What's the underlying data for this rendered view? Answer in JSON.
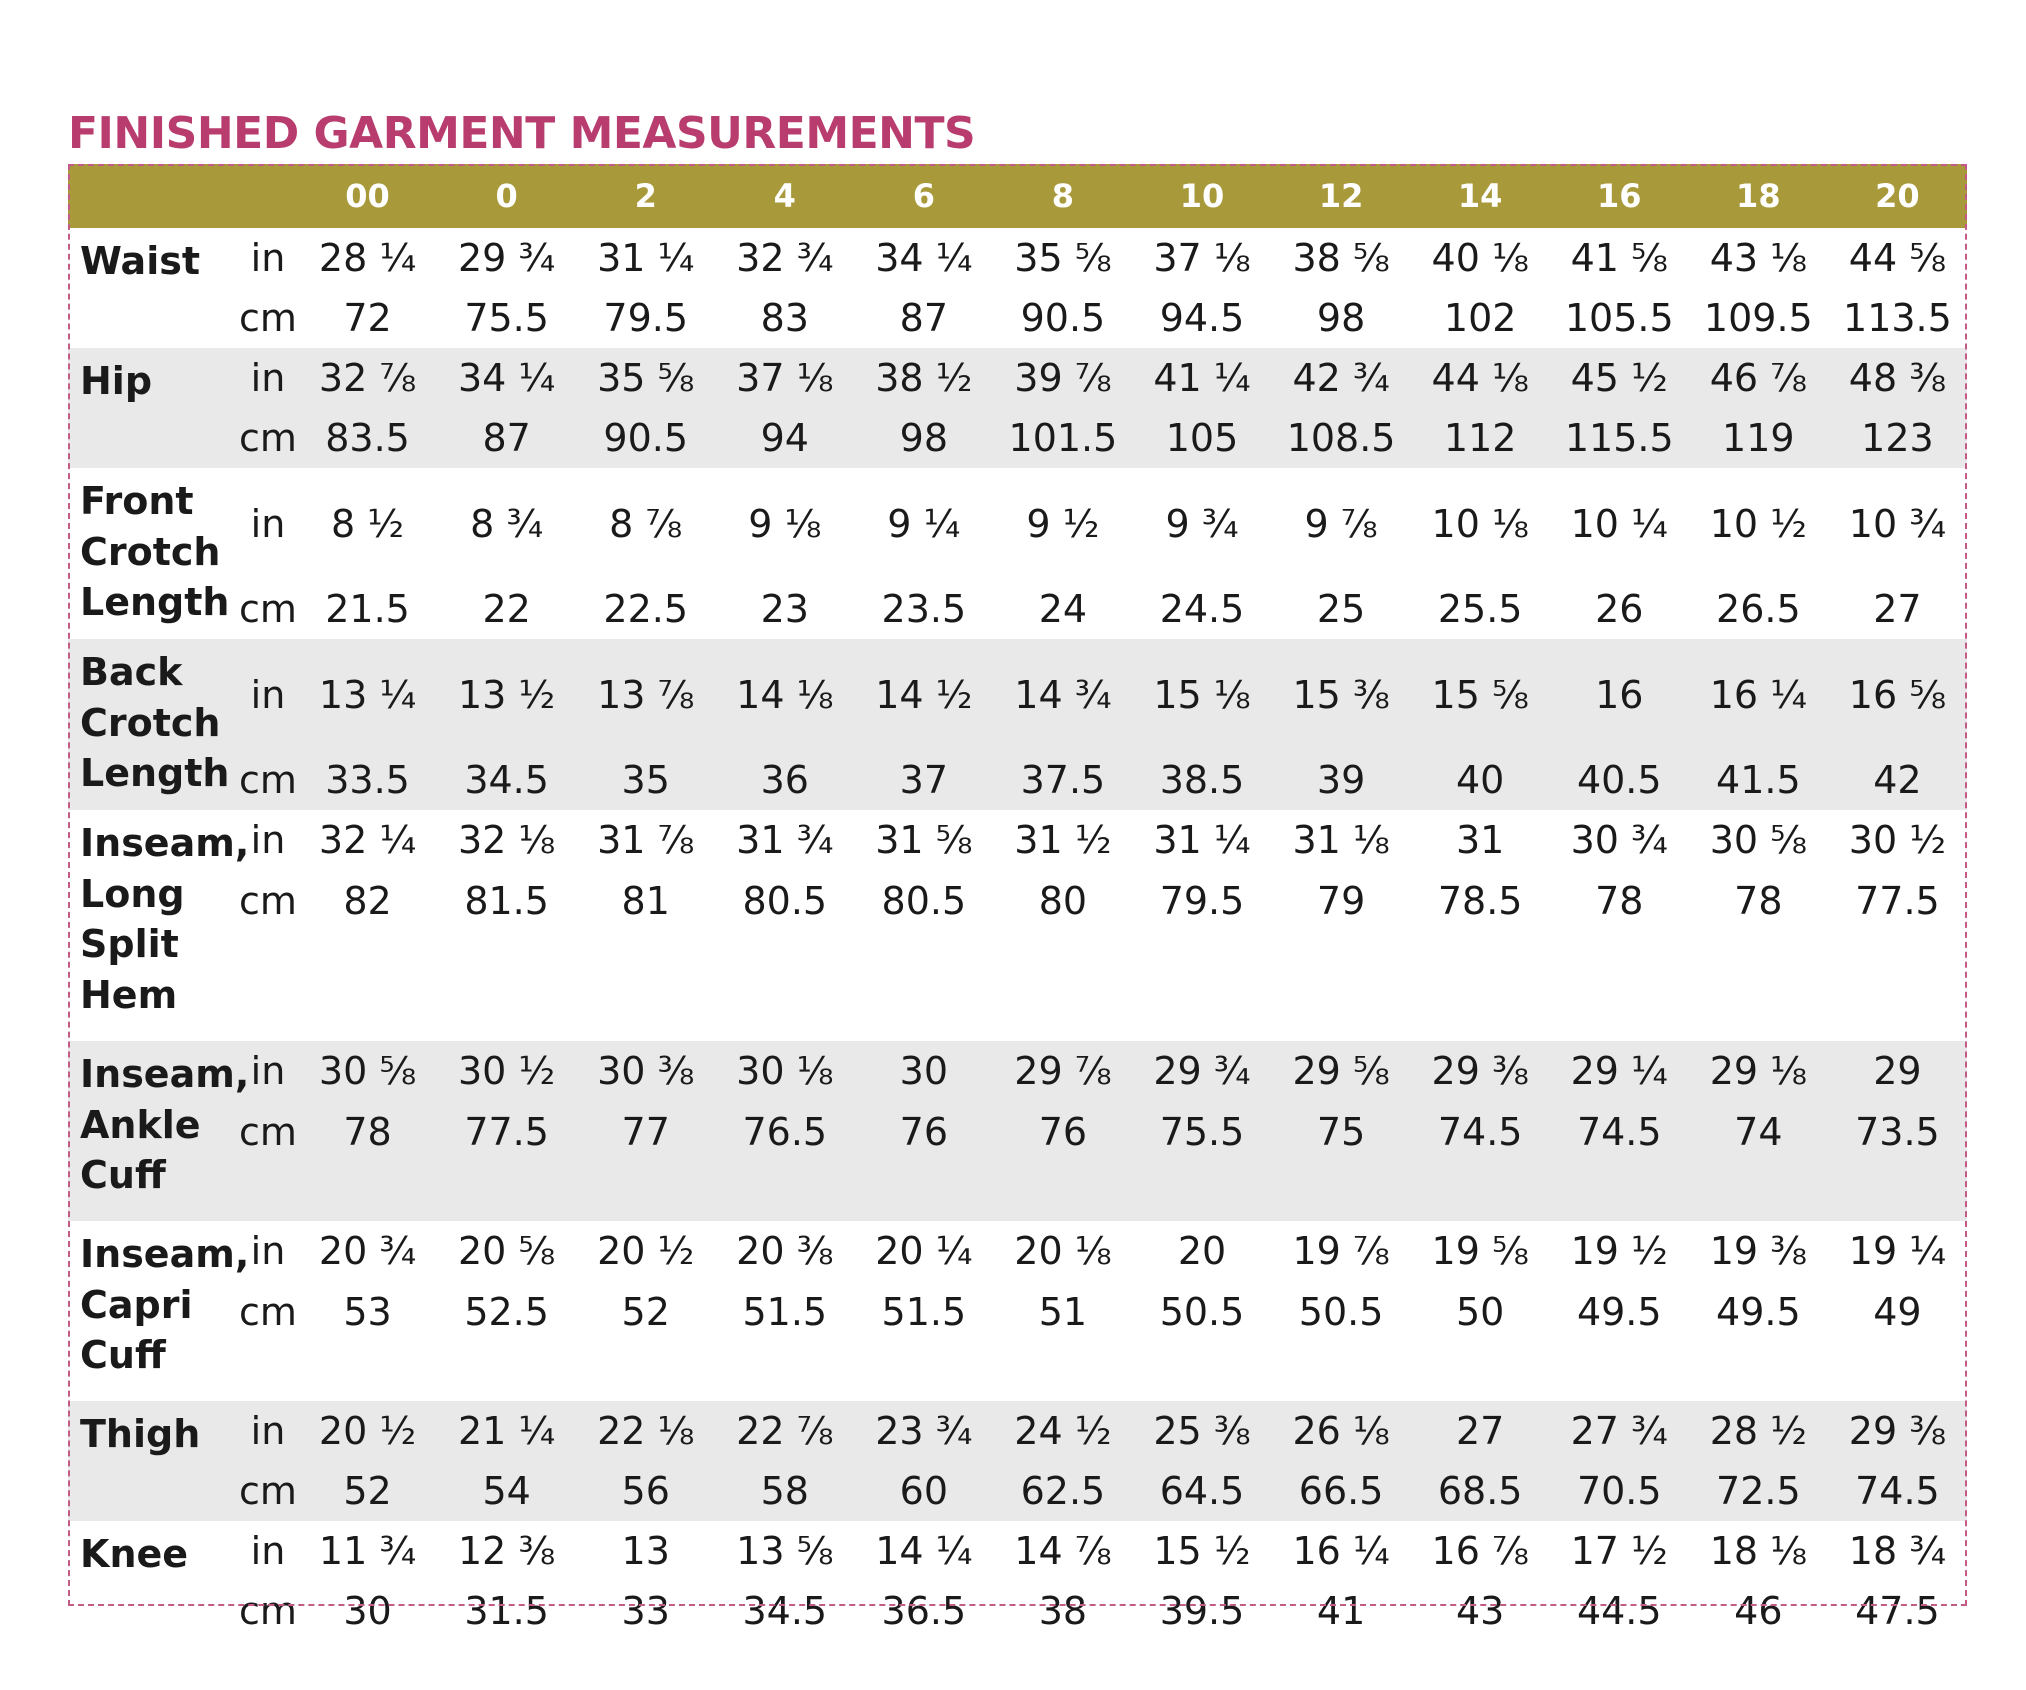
{
  "title": "FINISHED GARMENT MEASUREMENTS",
  "sizes": [
    "00",
    "0",
    "2",
    "4",
    "6",
    "8",
    "10",
    "12",
    "14",
    "16",
    "18",
    "20"
  ],
  "groups": [
    {
      "label": "Waist",
      "shade": false,
      "rows": [
        {
          "unit": "in",
          "values": [
            "28 ¼",
            "29 ¾",
            "31 ¼",
            "32 ¾",
            "34 ¼",
            "35 ⅝",
            "37 ⅛",
            "38 ⅝",
            "40 ⅛",
            "41 ⅝",
            "43 ⅛",
            "44 ⅝"
          ]
        },
        {
          "unit": "cm",
          "values": [
            "72",
            "75.5",
            "79.5",
            "83",
            "87",
            "90.5",
            "94.5",
            "98",
            "102",
            "105.5",
            "109.5",
            "113.5"
          ]
        }
      ]
    },
    {
      "label": "Hip",
      "shade": true,
      "rows": [
        {
          "unit": "in",
          "values": [
            "32 ⅞",
            "34 ¼",
            "35 ⅝",
            "37 ⅛",
            "38 ½",
            "39 ⅞",
            "41 ¼",
            "42 ¾",
            "44 ⅛",
            "45 ½",
            "46 ⅞",
            "48 ⅜"
          ]
        },
        {
          "unit": "cm",
          "values": [
            "83.5",
            "87",
            "90.5",
            "94",
            "98",
            "101.5",
            "105",
            "108.5",
            "112",
            "115.5",
            "119",
            "123"
          ]
        }
      ]
    },
    {
      "label": "Front Crotch Length",
      "shade": false,
      "rows": [
        {
          "unit": "in",
          "values": [
            "8 ½",
            "8 ¾",
            "8 ⅞",
            "9 ⅛",
            "9 ¼",
            "9 ½",
            "9 ¾",
            "9 ⅞",
            "10 ⅛",
            "10 ¼",
            "10 ½",
            "10 ¾"
          ],
          "height": 111
        },
        {
          "unit": "cm",
          "values": [
            "21.5",
            "22",
            "22.5",
            "23",
            "23.5",
            "24",
            "24.5",
            "25",
            "25.5",
            "26",
            "26.5",
            "27"
          ]
        }
      ]
    },
    {
      "label": "Back Crotch Length",
      "shade": true,
      "rows": [
        {
          "unit": "in",
          "values": [
            "13 ¼",
            "13 ½",
            "13 ⅞",
            "14 ⅛",
            "14 ½",
            "14 ¾",
            "15 ⅛",
            "15 ⅜",
            "15 ⅝",
            "16",
            "16 ¼",
            "16 ⅝"
          ],
          "height": 111
        },
        {
          "unit": "cm",
          "values": [
            "33.5",
            "34.5",
            "35",
            "36",
            "37",
            "37.5",
            "38.5",
            "39",
            "40",
            "40.5",
            "41.5",
            "42"
          ]
        }
      ]
    },
    {
      "label": "Inseam, Long Split Hem",
      "shade": false,
      "rows": [
        {
          "unit": "in",
          "values": [
            "32 ¼",
            "32 ⅛",
            "31 ⅞",
            "31 ¾",
            "31 ⅝",
            "31 ½",
            "31 ¼",
            "31 ⅛",
            "31",
            "30 ¾",
            "30 ⅝",
            "30 ½"
          ]
        },
        {
          "unit": "cm",
          "values": [
            "82",
            "81.5",
            "81",
            "80.5",
            "80.5",
            "80",
            "79.5",
            "79",
            "78.5",
            "78",
            "78",
            "77.5"
          ],
          "height": 162,
          "valign": "top"
        }
      ]
    },
    {
      "label": "Inseam, Ankle Cuff",
      "shade": true,
      "rows": [
        {
          "unit": "in",
          "values": [
            "30 ⅝",
            "30 ½",
            "30 ⅜",
            "30 ⅛",
            "30",
            "29 ⅞",
            "29 ¾",
            "29 ⅝",
            "29 ⅜",
            "29 ¼",
            "29 ⅛",
            "29"
          ]
        },
        {
          "unit": "cm",
          "values": [
            "78",
            "77.5",
            "77",
            "76.5",
            "76",
            "76",
            "75.5",
            "75",
            "74.5",
            "74.5",
            "74",
            "73.5"
          ],
          "height": 111,
          "valign": "top"
        }
      ]
    },
    {
      "label": "Inseam, Capri Cuff",
      "shade": false,
      "rows": [
        {
          "unit": "in",
          "values": [
            "20 ¾",
            "20 ⅝",
            "20 ½",
            "20 ⅜",
            "20 ¼",
            "20 ⅛",
            "20",
            "19 ⅞",
            "19 ⅝",
            "19 ½",
            "19 ⅜",
            "19 ¼"
          ]
        },
        {
          "unit": "cm",
          "values": [
            "53",
            "52.5",
            "52",
            "51.5",
            "51.5",
            "51",
            "50.5",
            "50.5",
            "50",
            "49.5",
            "49.5",
            "49"
          ],
          "height": 111,
          "valign": "top"
        }
      ]
    },
    {
      "label": "Thigh",
      "shade": true,
      "rows": [
        {
          "unit": "in",
          "values": [
            "20 ½",
            "21 ¼",
            "22 ⅛",
            "22 ⅞",
            "23 ¾",
            "24 ½",
            "25 ⅜",
            "26 ⅛",
            "27",
            "27 ¾",
            "28 ½",
            "29 ⅜"
          ]
        },
        {
          "unit": "cm",
          "values": [
            "52",
            "54",
            "56",
            "58",
            "60",
            "62.5",
            "64.5",
            "66.5",
            "68.5",
            "70.5",
            "72.5",
            "74.5"
          ]
        }
      ]
    },
    {
      "label": "Knee",
      "shade": false,
      "rows": [
        {
          "unit": "in",
          "values": [
            "11 ¾",
            "12 ⅜",
            "13",
            "13 ⅝",
            "14 ¼",
            "14 ⅞",
            "15 ½",
            "16 ¼",
            "16 ⅞",
            "17 ½",
            "18 ⅛",
            "18 ¾"
          ]
        },
        {
          "unit": "cm",
          "values": [
            "30",
            "31.5",
            "33",
            "34.5",
            "36.5",
            "38",
            "39.5",
            "41",
            "43",
            "44.5",
            "46",
            "47.5"
          ]
        }
      ]
    }
  ]
}
